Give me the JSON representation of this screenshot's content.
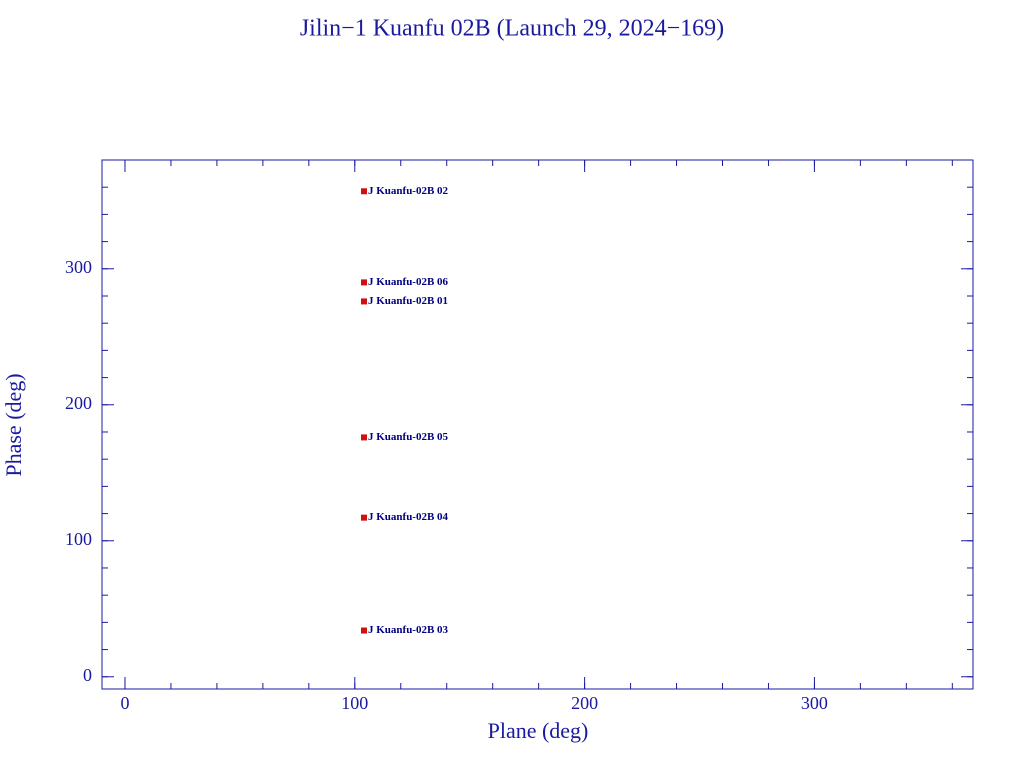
{
  "chart_data": {
    "type": "scatter",
    "title": "Jilin−1 Kuanfu 02B (Launch 29, 2024−169)",
    "x_label": "Plane (deg)",
    "y_label": "Phase (deg)",
    "x": [
      104,
      104,
      104,
      104,
      104,
      104
    ],
    "values": [
      357,
      290,
      276,
      176,
      117,
      34
    ],
    "point_labels": [
      "J Kuanfu-02B 02",
      "J Kuanfu-02B 06",
      "J Kuanfu-02B 01",
      "J Kuanfu-02B 05",
      "J Kuanfu-02B 04",
      "J Kuanfu-02B 03"
    ],
    "color": "#d01010",
    "label_color": "#000080",
    "xlim": [
      -10,
      369
    ],
    "ylim": [
      -9,
      380
    ],
    "xticks": [
      0,
      100,
      200,
      300
    ],
    "yticks": [
      0,
      100,
      200,
      300
    ],
    "grid": false
  }
}
